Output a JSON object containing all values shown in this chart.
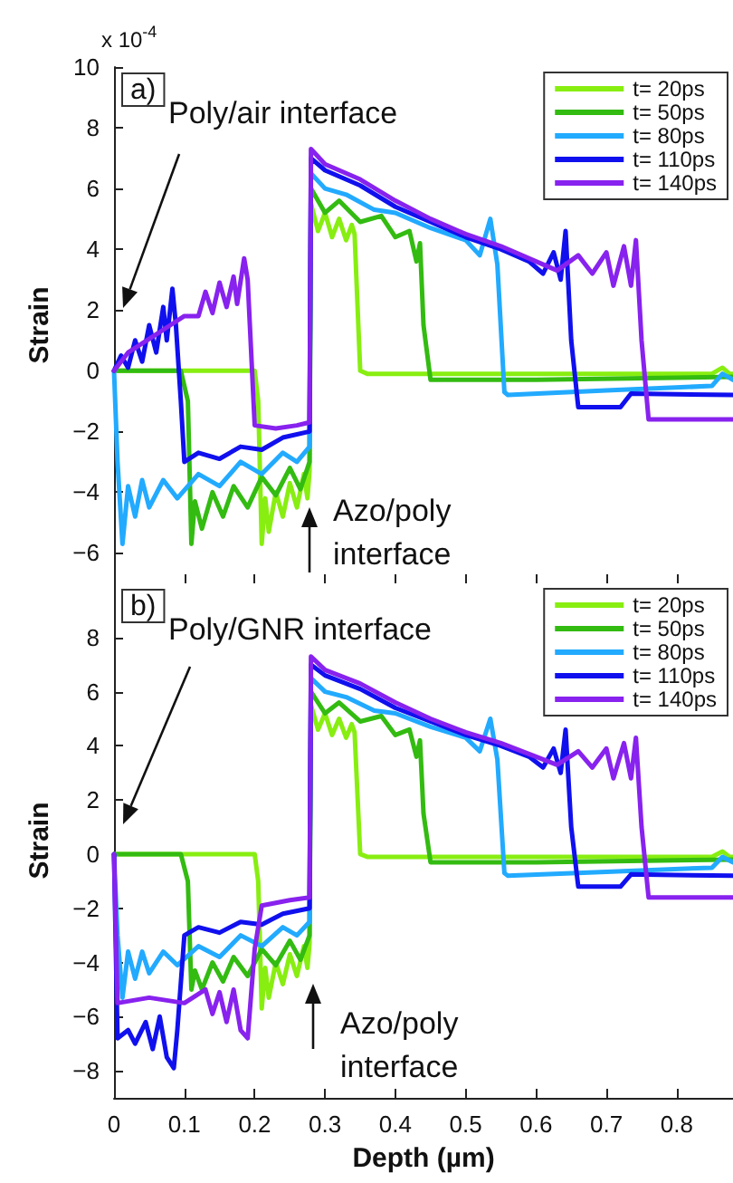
{
  "chart_data": [
    {
      "type": "line",
      "ylabel": "Strain",
      "xlim": [
        0,
        0.88
      ],
      "xticks": [
        0,
        0.1,
        0.2,
        0.3,
        0.4,
        0.5,
        0.6,
        0.7,
        0.8
      ],
      "ylim": [
        -7,
        10
      ],
      "yticks": [
        -6,
        -4,
        -2,
        0,
        2,
        4,
        6,
        8,
        10
      ],
      "tick_labels": "y",
      "grid": false,
      "legend": "top right",
      "marker": "none",
      "line_style": "solid",
      "annotations": [
        "a)",
        "x 10$^{-4}$",
        "Poly/air interface",
        "Azo/poly interface"
      ],
      "series": [
        {
          "name": "t= 20ps",
          "color": "#88ee11",
          "x": [
            0,
            0.1,
            0.2,
            0.205,
            0.21,
            0.215,
            0.22,
            0.23,
            0.24,
            0.25,
            0.26,
            0.27,
            0.275,
            0.278,
            0.28,
            0.29,
            0.3,
            0.31,
            0.32,
            0.33,
            0.338,
            0.342,
            0.35,
            0.36,
            0.5,
            0.7,
            0.85,
            0.865,
            0.875,
            0.88
          ],
          "values": [
            0,
            0,
            0,
            -1,
            -5.7,
            -4.2,
            -5.3,
            -4.0,
            -4.8,
            -3.7,
            -4.5,
            -3.4,
            -4.2,
            -3.3,
            5.5,
            4.6,
            5.2,
            4.4,
            5.0,
            4.3,
            4.8,
            4.5,
            0,
            -0.1,
            -0.1,
            -0.1,
            -0.1,
            0.1,
            -0.1,
            -0.1
          ]
        },
        {
          "name": "t= 50ps",
          "color": "#33bb11",
          "x": [
            0,
            0.095,
            0.105,
            0.11,
            0.115,
            0.125,
            0.14,
            0.155,
            0.17,
            0.19,
            0.21,
            0.23,
            0.25,
            0.265,
            0.278,
            0.28,
            0.3,
            0.32,
            0.35,
            0.38,
            0.4,
            0.42,
            0.43,
            0.435,
            0.44,
            0.45,
            0.6,
            0.88
          ],
          "values": [
            0,
            0,
            -1,
            -5.7,
            -4.3,
            -5.2,
            -4.0,
            -4.8,
            -3.8,
            -4.5,
            -3.5,
            -4.1,
            -3.2,
            -3.9,
            -3.0,
            6.0,
            5.2,
            5.6,
            4.9,
            5.1,
            4.4,
            4.6,
            3.6,
            4.2,
            1.5,
            -0.3,
            -0.3,
            -0.2
          ]
        },
        {
          "name": "t= 80ps",
          "color": "#22aaff",
          "x": [
            0,
            0.005,
            0.012,
            0.02,
            0.03,
            0.04,
            0.05,
            0.07,
            0.09,
            0.12,
            0.15,
            0.18,
            0.21,
            0.24,
            0.26,
            0.278,
            0.28,
            0.3,
            0.33,
            0.37,
            0.4,
            0.45,
            0.5,
            0.52,
            0.535,
            0.545,
            0.555,
            0.56,
            0.7,
            0.85,
            0.865,
            0.88
          ],
          "values": [
            0,
            -3,
            -5.7,
            -3.8,
            -4.8,
            -3.6,
            -4.5,
            -3.6,
            -4.2,
            -3.4,
            -3.8,
            -3.0,
            -3.4,
            -2.7,
            -3.0,
            -2.5,
            6.5,
            6.0,
            5.8,
            5.3,
            5.2,
            4.7,
            4.3,
            3.8,
            5.0,
            3.5,
            -0.7,
            -0.8,
            -0.65,
            -0.5,
            -0.1,
            -0.3
          ]
        },
        {
          "name": "t= 110ps",
          "color": "#1010ee",
          "x": [
            0,
            0.01,
            0.02,
            0.03,
            0.04,
            0.05,
            0.06,
            0.07,
            0.075,
            0.083,
            0.088,
            0.095,
            0.1,
            0.12,
            0.15,
            0.18,
            0.21,
            0.24,
            0.278,
            0.28,
            0.3,
            0.35,
            0.4,
            0.45,
            0.5,
            0.55,
            0.59,
            0.61,
            0.625,
            0.635,
            0.642,
            0.65,
            0.66,
            0.72,
            0.735,
            0.88
          ],
          "values": [
            0,
            0.5,
            0.1,
            1.0,
            0.3,
            1.5,
            0.6,
            2.1,
            1.0,
            2.7,
            1.5,
            -1,
            -3.0,
            -2.7,
            -2.9,
            -2.5,
            -2.6,
            -2.2,
            -2.0,
            7.0,
            6.6,
            6.1,
            5.4,
            4.9,
            4.4,
            4.0,
            3.6,
            3.2,
            3.9,
            3.0,
            4.6,
            1.0,
            -1.2,
            -1.2,
            -0.75,
            -0.8
          ]
        },
        {
          "name": "t= 140ps",
          "color": "#8822ee",
          "x": [
            0,
            0.02,
            0.04,
            0.06,
            0.08,
            0.1,
            0.12,
            0.13,
            0.14,
            0.15,
            0.16,
            0.17,
            0.175,
            0.185,
            0.19,
            0.2,
            0.23,
            0.26,
            0.278,
            0.28,
            0.3,
            0.35,
            0.4,
            0.45,
            0.5,
            0.55,
            0.6,
            0.63,
            0.66,
            0.68,
            0.7,
            0.71,
            0.725,
            0.735,
            0.742,
            0.75,
            0.76,
            0.88
          ],
          "values": [
            0,
            0.6,
            0.9,
            1.2,
            1.5,
            1.8,
            1.8,
            2.6,
            1.9,
            2.9,
            2.1,
            3.1,
            2.2,
            3.7,
            3.0,
            -1.8,
            -1.9,
            -1.8,
            -1.7,
            7.3,
            6.8,
            6.3,
            5.6,
            5.0,
            4.5,
            4.1,
            3.6,
            3.3,
            3.8,
            3.2,
            3.9,
            2.8,
            4.1,
            2.8,
            4.3,
            1.0,
            -1.6,
            -1.6
          ]
        }
      ]
    },
    {
      "type": "line",
      "xlabel": "Depth (µm)",
      "ylabel": "Strain",
      "xlim": [
        0,
        0.88
      ],
      "xticks": [
        0,
        0.1,
        0.2,
        0.3,
        0.4,
        0.5,
        0.6,
        0.7,
        0.8
      ],
      "ylim": [
        -9,
        10
      ],
      "yticks": [
        -8,
        -6,
        -4,
        -2,
        0,
        2,
        4,
        6,
        8
      ],
      "grid": false,
      "legend": "top right",
      "marker": "none",
      "line_style": "solid",
      "annotations": [
        "b)",
        "Poly/GNR interface",
        "Azo/poly interface"
      ],
      "series": [
        {
          "name": "t= 20ps",
          "color": "#88ee11",
          "x": [
            0,
            0.1,
            0.2,
            0.205,
            0.21,
            0.215,
            0.22,
            0.23,
            0.24,
            0.25,
            0.26,
            0.27,
            0.275,
            0.278,
            0.28,
            0.29,
            0.3,
            0.31,
            0.32,
            0.33,
            0.338,
            0.342,
            0.35,
            0.36,
            0.5,
            0.7,
            0.85,
            0.865,
            0.875,
            0.88
          ],
          "values": [
            0,
            0,
            0,
            -1,
            -5.7,
            -4.2,
            -5.3,
            -4.0,
            -4.8,
            -3.7,
            -4.5,
            -3.4,
            -4.2,
            -3.3,
            5.5,
            4.6,
            5.2,
            4.4,
            5.0,
            4.3,
            4.8,
            4.5,
            0,
            -0.1,
            -0.1,
            -0.1,
            -0.1,
            0.1,
            -0.1,
            -0.1
          ]
        },
        {
          "name": "t= 50ps",
          "color": "#33bb11",
          "x": [
            0,
            0.095,
            0.105,
            0.11,
            0.115,
            0.125,
            0.14,
            0.155,
            0.17,
            0.19,
            0.21,
            0.23,
            0.25,
            0.265,
            0.278,
            0.28,
            0.3,
            0.32,
            0.35,
            0.38,
            0.4,
            0.42,
            0.43,
            0.435,
            0.44,
            0.45,
            0.6,
            0.88
          ],
          "values": [
            0,
            0,
            -1,
            -5.0,
            -4.3,
            -5.0,
            -4.0,
            -4.7,
            -3.8,
            -4.5,
            -3.5,
            -4.1,
            -3.2,
            -3.9,
            -3.0,
            6.0,
            5.2,
            5.6,
            4.9,
            5.1,
            4.4,
            4.6,
            3.6,
            4.2,
            1.5,
            -0.3,
            -0.3,
            -0.2
          ]
        },
        {
          "name": "t= 80ps",
          "color": "#22aaff",
          "x": [
            0,
            0.005,
            0.012,
            0.02,
            0.03,
            0.04,
            0.05,
            0.07,
            0.09,
            0.12,
            0.15,
            0.18,
            0.21,
            0.24,
            0.26,
            0.278,
            0.28,
            0.3,
            0.33,
            0.37,
            0.4,
            0.45,
            0.5,
            0.52,
            0.535,
            0.545,
            0.555,
            0.56,
            0.7,
            0.85,
            0.865,
            0.88
          ],
          "values": [
            0,
            -3,
            -5.3,
            -3.6,
            -4.6,
            -3.6,
            -4.4,
            -3.6,
            -4.1,
            -3.4,
            -3.8,
            -3.0,
            -3.4,
            -2.7,
            -3.0,
            -2.5,
            6.5,
            6.0,
            5.8,
            5.3,
            5.2,
            4.7,
            4.3,
            3.8,
            5.0,
            3.5,
            -0.7,
            -0.8,
            -0.65,
            -0.5,
            -0.1,
            -0.3
          ]
        },
        {
          "name": "t= 110ps",
          "color": "#1010ee",
          "x": [
            0,
            0.005,
            0.02,
            0.03,
            0.045,
            0.055,
            0.065,
            0.075,
            0.085,
            0.09,
            0.1,
            0.12,
            0.15,
            0.18,
            0.21,
            0.24,
            0.278,
            0.28,
            0.3,
            0.35,
            0.4,
            0.45,
            0.5,
            0.55,
            0.59,
            0.61,
            0.625,
            0.635,
            0.642,
            0.65,
            0.66,
            0.72,
            0.735,
            0.88
          ],
          "values": [
            0,
            -6.8,
            -6.5,
            -7.0,
            -6.2,
            -7.2,
            -6.0,
            -7.5,
            -7.9,
            -6.5,
            -3.0,
            -2.7,
            -2.9,
            -2.5,
            -2.6,
            -2.2,
            -2.0,
            7.0,
            6.6,
            6.1,
            5.4,
            4.9,
            4.4,
            4.0,
            3.6,
            3.2,
            3.9,
            3.0,
            4.6,
            1.0,
            -1.2,
            -1.2,
            -0.75,
            -0.8
          ]
        },
        {
          "name": "t= 140ps",
          "color": "#8822ee",
          "x": [
            0,
            0.005,
            0.05,
            0.1,
            0.13,
            0.14,
            0.15,
            0.16,
            0.17,
            0.18,
            0.19,
            0.2,
            0.21,
            0.25,
            0.278,
            0.28,
            0.3,
            0.35,
            0.4,
            0.45,
            0.5,
            0.55,
            0.6,
            0.63,
            0.66,
            0.68,
            0.7,
            0.71,
            0.725,
            0.735,
            0.742,
            0.75,
            0.76,
            0.88
          ],
          "values": [
            0,
            -5.5,
            -5.3,
            -5.5,
            -5.0,
            -5.9,
            -5.1,
            -6.2,
            -5.0,
            -6.5,
            -6.8,
            -3.5,
            -1.9,
            -1.7,
            -1.6,
            7.3,
            6.8,
            6.3,
            5.6,
            5.0,
            4.5,
            4.1,
            3.6,
            3.3,
            3.8,
            3.2,
            3.9,
            2.8,
            4.1,
            2.8,
            4.3,
            1.0,
            -1.6,
            -1.6
          ]
        }
      ]
    }
  ]
}
